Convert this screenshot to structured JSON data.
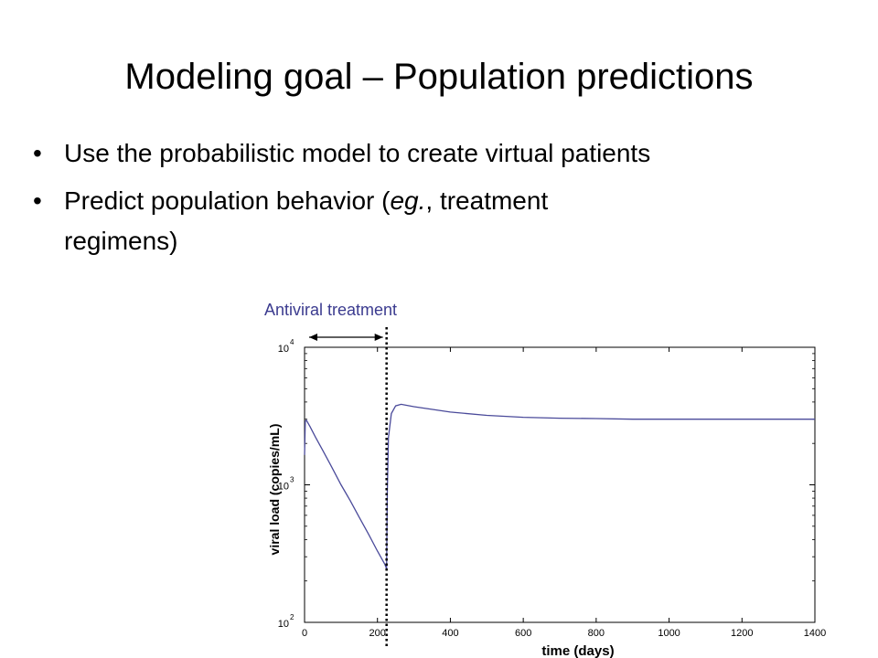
{
  "slide": {
    "title": "Modeling goal – Population predictions",
    "bullets": [
      {
        "marker": "•",
        "text": "Use the probabilistic model to create virtual patients"
      },
      {
        "marker": "•",
        "text": "Predict population behavior  (",
        "italic": "eg.",
        "text_after": ", treatment",
        "continuation": "regimens)"
      }
    ]
  },
  "annotation": {
    "label": "Antiviral treatment",
    "treatment_end_day": 225,
    "color": "#3b3b8f"
  },
  "chart_data": {
    "type": "line",
    "title": "",
    "xlabel": "time (days)",
    "ylabel": "viral load (copies/mL)",
    "xlim": [
      0,
      1400
    ],
    "ylim": [
      100,
      10000
    ],
    "yscale": "log",
    "x_ticks": [
      0,
      200,
      400,
      600,
      800,
      1000,
      1200,
      1400
    ],
    "y_ticks": [
      {
        "value": 100,
        "base": "10",
        "exp": "2"
      },
      {
        "value": 1000,
        "base": "10",
        "exp": "3"
      },
      {
        "value": 10000,
        "base": "10",
        "exp": "4"
      }
    ],
    "grid": false,
    "series": [
      {
        "color": "#4a4a9a",
        "points": [
          [
            0,
            1650
          ],
          [
            2,
            2900
          ],
          [
            5,
            2950
          ],
          [
            15,
            2650
          ],
          [
            30,
            2220
          ],
          [
            50,
            1780
          ],
          [
            75,
            1340
          ],
          [
            100,
            1000
          ],
          [
            125,
            770
          ],
          [
            150,
            580
          ],
          [
            175,
            440
          ],
          [
            200,
            330
          ],
          [
            220,
            265
          ],
          [
            225,
            245
          ],
          [
            227,
            900
          ],
          [
            230,
            2200
          ],
          [
            238,
            3300
          ],
          [
            250,
            3750
          ],
          [
            265,
            3850
          ],
          [
            300,
            3700
          ],
          [
            400,
            3380
          ],
          [
            500,
            3200
          ],
          [
            600,
            3100
          ],
          [
            700,
            3050
          ],
          [
            800,
            3030
          ],
          [
            900,
            3000
          ],
          [
            1000,
            3000
          ],
          [
            1200,
            3000
          ],
          [
            1400,
            3000
          ]
        ]
      }
    ]
  }
}
